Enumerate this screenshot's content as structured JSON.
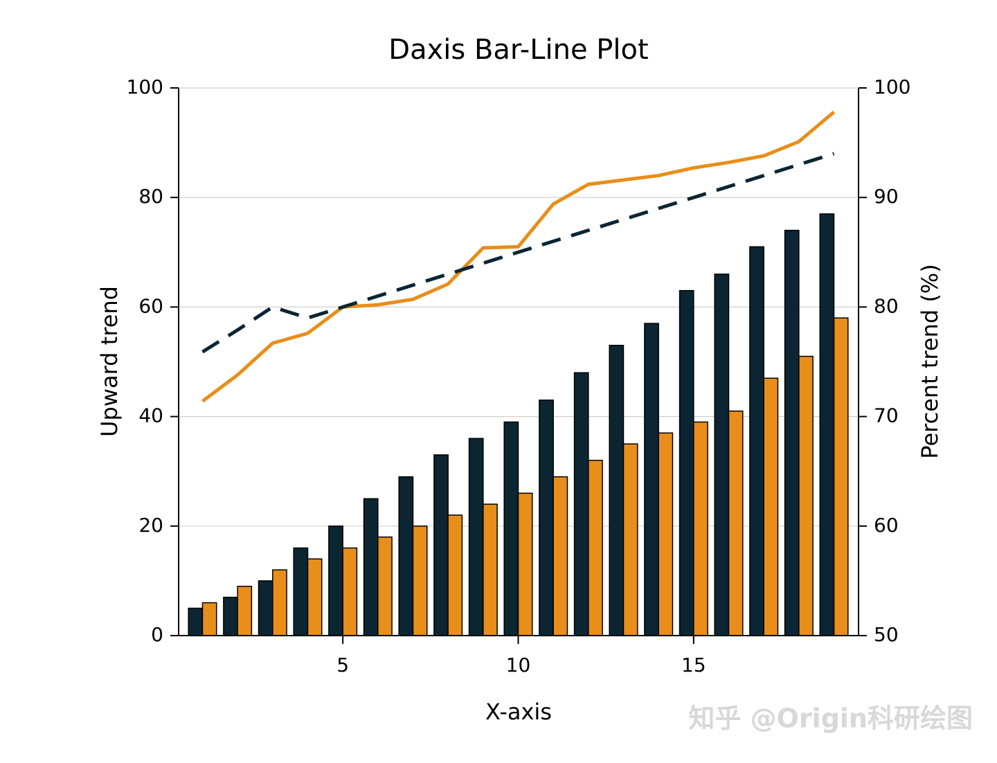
{
  "chart_data": {
    "type": "bar",
    "title": "Daxis Bar-Line Plot",
    "x_label": "X-axis",
    "y_label": "Upward trend",
    "y2_label": "Percent trend (%)",
    "watermark": "知乎 @Origin科研绘图",
    "x": [
      1,
      2,
      3,
      4,
      5,
      6,
      7,
      8,
      9,
      10,
      11,
      12,
      13,
      14,
      15,
      16,
      17,
      18,
      19
    ],
    "xlim": [
      0.32,
      19.7
    ],
    "xticks": [
      5,
      10,
      15
    ],
    "ylim": [
      0,
      100
    ],
    "yticks": [
      0,
      20,
      40,
      60,
      80,
      100
    ],
    "y2lim": [
      50,
      100
    ],
    "y2ticks": [
      50,
      60,
      70,
      80,
      90,
      100
    ],
    "grid": true,
    "series": [
      {
        "type": "bar",
        "color": "#0b2533",
        "values": [
          5,
          7,
          10,
          16,
          20,
          25,
          29,
          33,
          36,
          39,
          43,
          48,
          53,
          57,
          63,
          66,
          71,
          74,
          77
        ]
      },
      {
        "type": "bar",
        "color": "#e88e1a",
        "values": [
          6,
          9,
          12,
          14,
          16,
          18,
          20,
          22,
          24,
          26,
          29,
          32,
          35,
          37,
          39,
          41,
          47,
          51,
          58
        ]
      },
      {
        "type": "line",
        "axis": "y2",
        "color": "#e88e1a",
        "dashed": false,
        "values": [
          71.4,
          73.8,
          76.7,
          77.6,
          80.0,
          80.2,
          80.7,
          82.1,
          85.4,
          85.5,
          89.4,
          91.2,
          91.6,
          92.0,
          92.7,
          93.2,
          93.8,
          95.1,
          97.8
        ]
      },
      {
        "type": "line",
        "axis": "y2",
        "color": "#0b2533",
        "dashed": true,
        "values": [
          75.9,
          77.9,
          80.0,
          79.0,
          80.0,
          81.0,
          82.0,
          83.0,
          84.0,
          85.0,
          86.0,
          87.0,
          88.0,
          89.0,
          90.0,
          91.0,
          92.0,
          93.0,
          94.0
        ]
      }
    ]
  }
}
